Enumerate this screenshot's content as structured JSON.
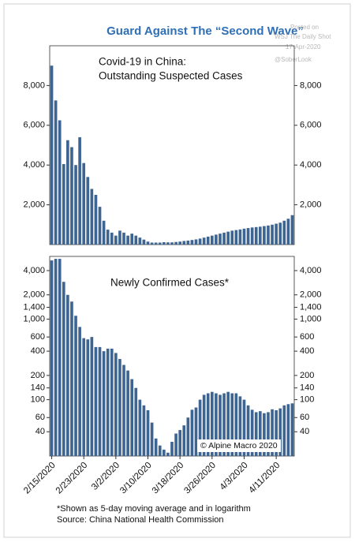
{
  "title": "Guard Against The “Second Wave”",
  "watermark": [
    "Posted on",
    "WSJ The Daily Shot",
    "17-Apr-2020",
    "@SoberLook"
  ],
  "footnotes": [
    "*Shown as 5-day moving average and in logarithm",
    "Source: China National Health Commission"
  ],
  "chart_data": [
    {
      "type": "bar",
      "title": [
        "Covid-19 in China:",
        "Outstanding Suspected Cases"
      ],
      "color": "#3e6592",
      "values": [
        9000,
        7250,
        6250,
        4050,
        5250,
        4900,
        4000,
        5400,
        4100,
        3400,
        2800,
        2500,
        1900,
        1200,
        750,
        600,
        450,
        700,
        600,
        450,
        550,
        450,
        350,
        250,
        150,
        100,
        100,
        100,
        120,
        110,
        110,
        130,
        150,
        180,
        200,
        230,
        260,
        300,
        350,
        400,
        450,
        500,
        550,
        600,
        650,
        700,
        730,
        760,
        800,
        830,
        860,
        880,
        900,
        930,
        960,
        1000,
        1050,
        1100,
        1200,
        1300,
        1480
      ],
      "ylim": [
        0,
        10000
      ],
      "yticks": [
        {
          "value": 2000,
          "label": "2,000"
        },
        {
          "value": 4000,
          "label": "4,000"
        },
        {
          "value": 6000,
          "label": "6,000"
        },
        {
          "value": 8000,
          "label": "8,000"
        }
      ],
      "log_scale": false
    },
    {
      "type": "bar",
      "title": "Newly Confirmed Cases*",
      "annotation": "© Alpine Macro 2020",
      "color": "#3e6592",
      "categories": [
        "2/15/2020",
        null,
        null,
        null,
        null,
        null,
        null,
        null,
        "2/23/2020",
        null,
        null,
        null,
        null,
        null,
        null,
        null,
        "3/2/2020",
        null,
        null,
        null,
        null,
        null,
        null,
        null,
        "3/10/2020",
        null,
        null,
        null,
        null,
        null,
        null,
        null,
        "3/18/2020",
        null,
        null,
        null,
        null,
        null,
        null,
        null,
        "3/26/2020",
        null,
        null,
        null,
        null,
        null,
        null,
        null,
        "4/3/2020",
        null,
        null,
        null,
        null,
        null,
        null,
        null,
        "4/11/2020",
        null,
        null,
        null,
        null
      ],
      "values": [
        5350,
        5600,
        5600,
        2900,
        2000,
        1650,
        1100,
        800,
        580,
        560,
        600,
        450,
        450,
        400,
        430,
        430,
        380,
        320,
        270,
        230,
        180,
        140,
        100,
        85,
        74,
        52,
        33,
        27,
        24,
        22,
        30,
        38,
        42,
        48,
        60,
        75,
        80,
        100,
        115,
        120,
        125,
        120,
        115,
        120,
        125,
        120,
        120,
        110,
        100,
        85,
        75,
        70,
        72,
        68,
        70,
        76,
        74,
        78,
        85,
        88,
        90
      ],
      "ylim": [
        20,
        6000
      ],
      "yticks": [
        40,
        60,
        100,
        140,
        200,
        400,
        600,
        {
          "value": 1000,
          "label": "1,000"
        },
        {
          "value": 1400,
          "label": "1,400"
        },
        {
          "value": 2000,
          "label": "2,000"
        },
        {
          "value": 4000,
          "label": "4,000"
        }
      ],
      "log_scale": true
    }
  ]
}
